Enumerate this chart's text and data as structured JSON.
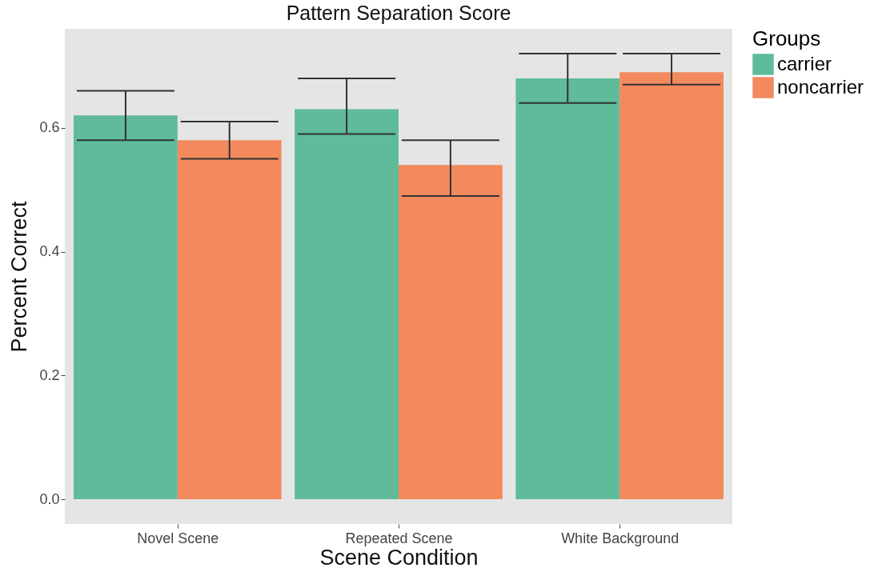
{
  "chart_data": {
    "type": "bar",
    "title": "Pattern Separation Score",
    "xlabel": "Scene Condition",
    "ylabel": "Percent Correct",
    "legend_title": "Groups",
    "categories": [
      "Novel Scene",
      "Repeated Scene",
      "White Background"
    ],
    "series": [
      {
        "name": "carrier",
        "color": "#5fbb9a",
        "values": [
          0.62,
          0.63,
          0.68
        ],
        "errors": [
          [
            0.58,
            0.66
          ],
          [
            0.59,
            0.68
          ],
          [
            0.64,
            0.72
          ]
        ]
      },
      {
        "name": "noncarrier",
        "color": "#f28a5e",
        "values": [
          0.58,
          0.54,
          0.69
        ],
        "errors": [
          [
            0.55,
            0.61
          ],
          [
            0.49,
            0.58
          ],
          [
            0.67,
            0.72
          ]
        ]
      }
    ],
    "ylim": [
      -0.04,
      0.76
    ],
    "yticks": [
      {
        "value": 0,
        "label": "0.0"
      },
      0.2,
      0.4,
      0.6
    ],
    "grid": false,
    "legend": "right"
  }
}
